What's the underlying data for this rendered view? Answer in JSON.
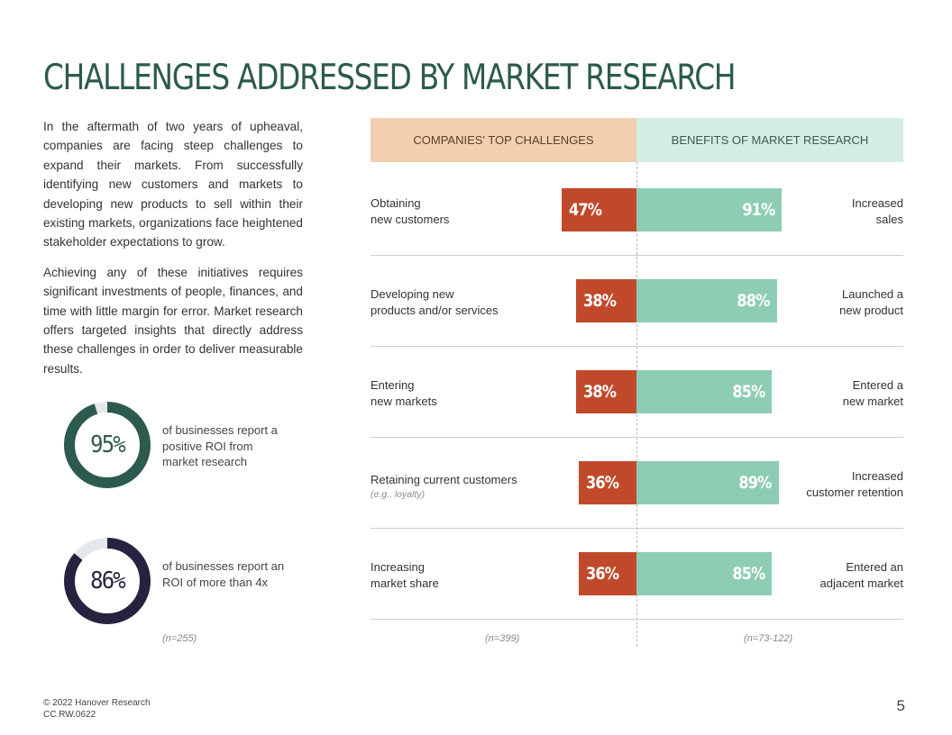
{
  "page": {
    "title": "CHALLENGES ADDRESSED BY MARKET RESEARCH",
    "intro_paragraphs": [
      "In the aftermath of two years of upheaval, companies are facing steep challenges to expand their markets. From successfully identifying new customers and markets to developing new products to sell within their existing markets, organizations face heightened stakeholder expectations to grow.",
      "Achieving any of these initiatives requires significant investments of people, finances, and time with little margin for error. Market research offers targeted insights that directly address these challenges in order to deliver measurable results."
    ],
    "footer": {
      "copyright": "© 2022 Hanover Research",
      "code": "CC.RW.0622"
    },
    "page_number": "5"
  },
  "stats": [
    {
      "value_label": "95%",
      "value": 95,
      "text": "of businesses report a positive ROI from market research",
      "color": "#2d5a4f",
      "track": "#e4e8eb"
    },
    {
      "value_label": "86%",
      "value": 86,
      "text": "of businesses report an ROI of more than 4x",
      "color": "#252340",
      "track": "#e4e8eb"
    }
  ],
  "stats_sample": "(n=255)",
  "chart_data": {
    "type": "bar",
    "orientation": "horizontal-diverging",
    "left_header": "COMPANIES' TOP CHALLENGES",
    "right_header": "BENEFITS OF MARKET RESEARCH",
    "left_sample": "(n=399)",
    "right_sample": "(n=73-122)",
    "left_color": "#c1492b",
    "right_color": "#8dcdb3",
    "xlim": [
      0,
      100
    ],
    "rows": [
      {
        "challenge": "Obtaining new customers",
        "challenge_lines": [
          "Obtaining",
          "new customers"
        ],
        "challenge_sub": "",
        "challenge_value": 47,
        "challenge_label": "47%",
        "benefit_lines": [
          "Increased",
          "sales"
        ],
        "benefit_value": 91,
        "benefit_label": "91%"
      },
      {
        "challenge": "Developing new products and/or services",
        "challenge_lines": [
          "Developing new",
          "products and/or services"
        ],
        "challenge_sub": "",
        "challenge_value": 38,
        "challenge_label": "38%",
        "benefit_lines": [
          "Launched a",
          "new product"
        ],
        "benefit_value": 88,
        "benefit_label": "88%"
      },
      {
        "challenge": "Entering new markets",
        "challenge_lines": [
          "Entering",
          "new markets"
        ],
        "challenge_sub": "",
        "challenge_value": 38,
        "challenge_label": "38%",
        "benefit_lines": [
          "Entered a",
          "new market"
        ],
        "benefit_value": 85,
        "benefit_label": "85%"
      },
      {
        "challenge": "Retaining current customers",
        "challenge_lines": [
          "Retaining current customers"
        ],
        "challenge_sub": "(e.g., loyalty)",
        "challenge_value": 36,
        "challenge_label": "36%",
        "benefit_lines": [
          "Increased",
          "customer retention"
        ],
        "benefit_value": 89,
        "benefit_label": "89%"
      },
      {
        "challenge": "Increasing market share",
        "challenge_lines": [
          "Increasing",
          "market share"
        ],
        "challenge_sub": "",
        "challenge_value": 36,
        "challenge_label": "36%",
        "benefit_lines": [
          "Entered an",
          "adjacent market"
        ],
        "benefit_value": 85,
        "benefit_label": "85%"
      }
    ]
  }
}
